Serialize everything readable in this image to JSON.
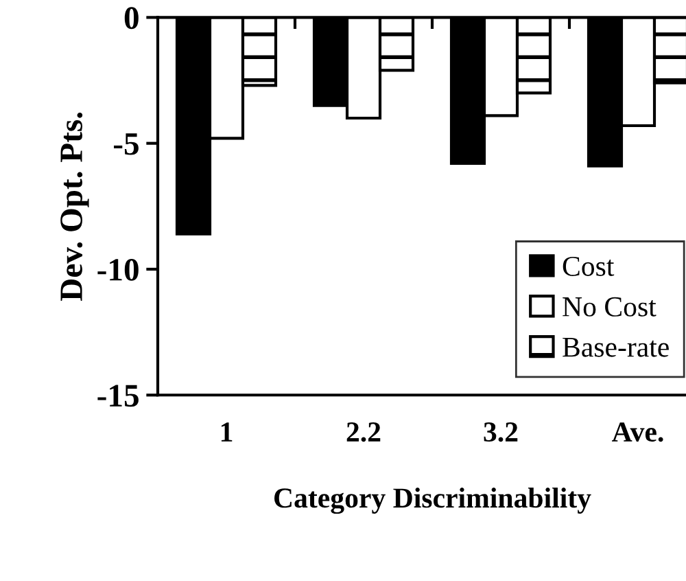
{
  "chart_data": {
    "type": "bar",
    "xlabel": "Category Discriminability",
    "ylabel": "Dev. Opt. Pts.",
    "categories": [
      "1",
      "2.2",
      "3.2",
      "Ave."
    ],
    "series": [
      {
        "name": "Cost",
        "color": "#000000",
        "values": [
          -8.6,
          -3.5,
          -5.8,
          -5.9
        ]
      },
      {
        "name": "No Cost",
        "color": "#ffffff",
        "values": [
          -4.8,
          -4.0,
          -3.9,
          -4.3
        ]
      },
      {
        "name": "Base-rate",
        "color": "#000000",
        "values": [
          -2.7,
          -2.1,
          -3.0,
          -2.6
        ]
      }
    ],
    "ylim": [
      -15,
      0
    ],
    "yticks": [
      -15,
      -10,
      -5,
      0
    ],
    "grid": false,
    "legend": "bottom right"
  }
}
